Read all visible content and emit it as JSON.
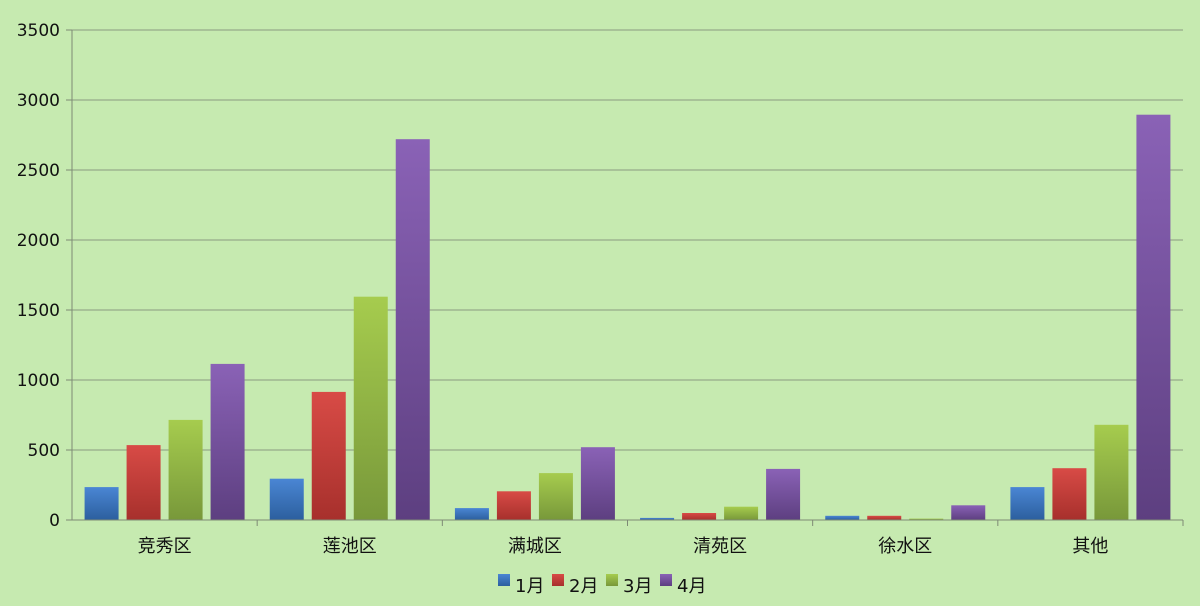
{
  "chart_data": {
    "type": "bar",
    "title": "",
    "xlabel": "",
    "ylabel": "",
    "categories": [
      "竞秀区",
      "莲池区",
      "满城区",
      "清苑区",
      "徐水区",
      "其他"
    ],
    "series": [
      {
        "name": "1月",
        "values": [
          235,
          295,
          85,
          15,
          30,
          235
        ]
      },
      {
        "name": "2月",
        "values": [
          535,
          915,
          205,
          50,
          30,
          370
        ]
      },
      {
        "name": "3月",
        "values": [
          715,
          1595,
          335,
          95,
          10,
          680
        ]
      },
      {
        "name": "4月",
        "values": [
          1115,
          2720,
          520,
          365,
          105,
          2895
        ]
      }
    ],
    "ylim": [
      0,
      3500
    ],
    "yticks": [
      "0",
      "500",
      "1000",
      "1500",
      "2000",
      "2500",
      "3000",
      "3500"
    ],
    "grid": true,
    "legend_position": "bottom",
    "colors": {
      "background": "#c6eab0",
      "series": [
        [
          "#4a86d4",
          "#2c5f9e"
        ],
        [
          "#d84b46",
          "#a7302c"
        ],
        [
          "#a6cc4e",
          "#78983a"
        ],
        [
          "#8a62b6",
          "#5d3f80"
        ]
      ],
      "grid": "#8a9a80",
      "axis": "#7d8a75"
    }
  }
}
